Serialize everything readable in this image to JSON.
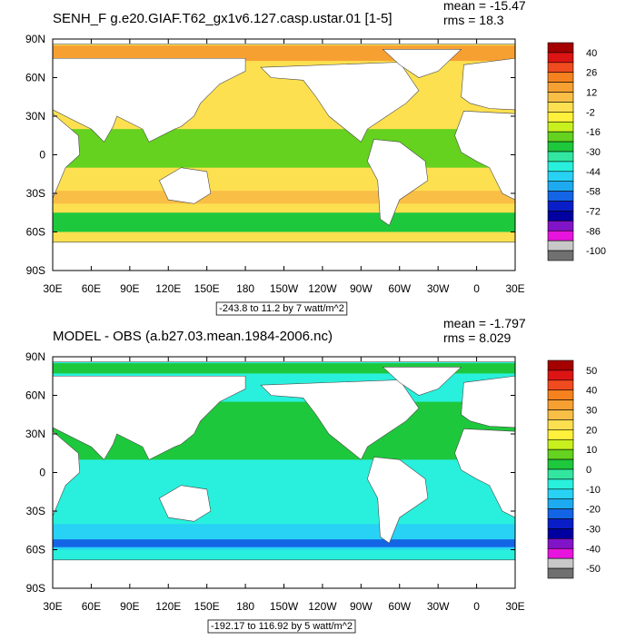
{
  "panels": [
    {
      "title": "SENH_F g.e20.GIAF.T62_gx1v6.127.casp.ustar.01 [1-5]",
      "mean": "mean = -15.47",
      "rms": "rms = 18.3",
      "lat_labels": [
        "90N",
        "60N",
        "30N",
        "0",
        "30S",
        "60S",
        "90S"
      ],
      "lon_labels": [
        "30E",
        "60E",
        "90E",
        "120E",
        "150E",
        "180",
        "150W",
        "120W",
        "90W",
        "60W",
        "30W",
        "0",
        "30E"
      ],
      "contour_info": "-243.8 to 11.2 by 7 watt/m^2",
      "colorbar": {
        "labels": [
          40,
          26,
          12,
          -2,
          -16,
          -30,
          -44,
          -58,
          -72,
          -86,
          -100
        ],
        "colors": [
          "#a50000",
          "#dc1414",
          "#f04b1e",
          "#f5821e",
          "#f7a032",
          "#f9be46",
          "#fde050",
          "#fff03c",
          "#c8f01e",
          "#64d21e",
          "#1ec83c",
          "#32e6a0",
          "#28f0dc",
          "#28d2f5",
          "#1eaaf0",
          "#1464e6",
          "#0a1ec8",
          "#0000a0",
          "#8214c8",
          "#e614dc",
          "#c8c8c8",
          "#707070"
        ]
      }
    },
    {
      "title": "MODEL - OBS (a.b27.03.mean.1984-2006.nc)",
      "mean": "mean = -1.797",
      "rms": "rms = 8.029",
      "lat_labels": [
        "90N",
        "60N",
        "30N",
        "0",
        "30S",
        "60S",
        "90S"
      ],
      "lon_labels": [
        "30E",
        "60E",
        "90E",
        "120E",
        "150E",
        "180",
        "150W",
        "120W",
        "90W",
        "60W",
        "30W",
        "0",
        "30E"
      ],
      "contour_info": "-192.17 to 116.92 by 5 watt/m^2",
      "colorbar": {
        "labels": [
          50,
          40,
          30,
          20,
          10,
          0,
          -10,
          -20,
          -30,
          -40,
          -50
        ],
        "colors": [
          "#a50000",
          "#dc1414",
          "#f04b1e",
          "#f5821e",
          "#f7a032",
          "#f9be46",
          "#fde050",
          "#fff03c",
          "#c8f01e",
          "#64d21e",
          "#1ec83c",
          "#32e6a0",
          "#28f0dc",
          "#28d2f5",
          "#1eaaf0",
          "#1464e6",
          "#0a1ec8",
          "#0000a0",
          "#8214c8",
          "#e614dc",
          "#c8c8c8",
          "#707070"
        ]
      }
    }
  ]
}
